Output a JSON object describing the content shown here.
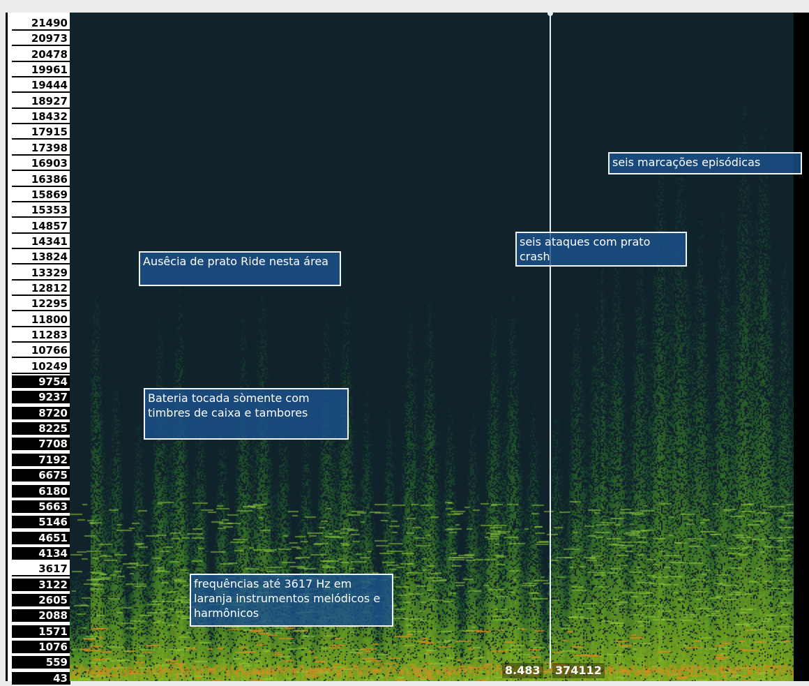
{
  "frequency_axis": {
    "labels": [
      "21490",
      "20973",
      "20478",
      "19961",
      "19444",
      "18927",
      "18432",
      "17915",
      "17398",
      "16903",
      "16386",
      "15869",
      "15353",
      "14857",
      "14341",
      "13824",
      "13329",
      "12812",
      "12295",
      "11800",
      "11283",
      "10766",
      "10249",
      "9754",
      "9237",
      "8720",
      "8225",
      "7708",
      "7192",
      "6675",
      "6180",
      "5663",
      "5146",
      "4651",
      "4134",
      "3617",
      "3122",
      "2605",
      "2088",
      "1571",
      "1076",
      "559",
      "43"
    ]
  },
  "annotations": {
    "ride": "Ausêcia de prato Ride nesta área",
    "drums": "Bateria tocada sòmente com timbres de caixa e tambores",
    "freq": "frequências até 3617 Hz em laranja instrumentos melódicos e harmônicos",
    "crash": "seis ataques com prato crash",
    "episodic": "seis marcações episódicas"
  },
  "readout": {
    "time": "8.483",
    "sample": "374112"
  },
  "colors": {
    "background": "#10222a",
    "accent_green": "#5fb43a",
    "accent_orange": "#e08a1e",
    "note_fill": "#1c528c"
  }
}
